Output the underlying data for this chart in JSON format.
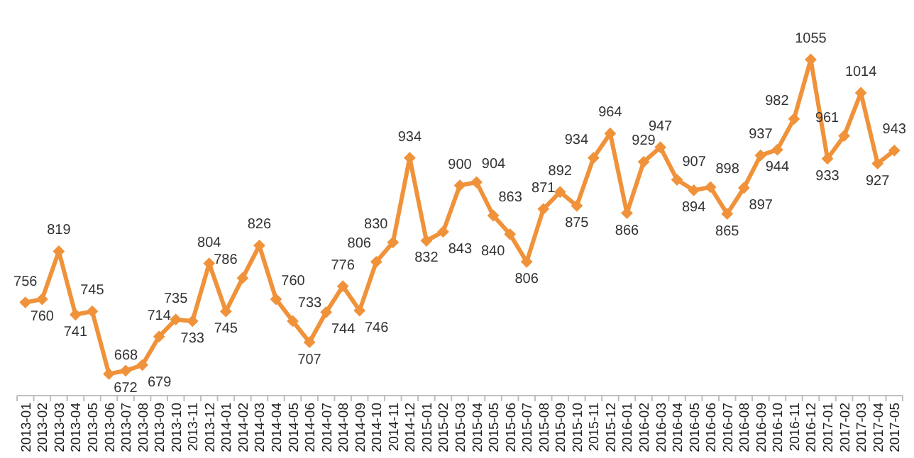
{
  "chart_data": {
    "type": "line",
    "categories": [
      "2013-01",
      "2013-02",
      "2013-03",
      "2013-04",
      "2013-05",
      "2013-06",
      "2013-07",
      "2013-08",
      "2013-09",
      "2013-10",
      "2013-11",
      "2013-12",
      "2014-01",
      "2014-02",
      "2014-03",
      "2014-04",
      "2014-05",
      "2014-06",
      "2014-07",
      "2014-08",
      "2014-09",
      "2014-10",
      "2014-11",
      "2014-12",
      "2015-01",
      "2015-02",
      "2015-03",
      "2015-04",
      "2015-05",
      "2015-06",
      "2015-07",
      "2015-08",
      "2015-09",
      "2015-10",
      "2015-11",
      "2015-12",
      "2016-01",
      "2016-02",
      "2016-03",
      "2016-04",
      "2016-05",
      "2016-06",
      "2016-07",
      "2016-08",
      "2016-09",
      "2016-10",
      "2016-11",
      "2016-12",
      "2017-01",
      "2017-02",
      "2017-03",
      "2017-04",
      "2017-05"
    ],
    "values": [
      756,
      760,
      819,
      741,
      745,
      668,
      672,
      679,
      714,
      735,
      733,
      804,
      745,
      786,
      826,
      760,
      733,
      707,
      744,
      776,
      746,
      806,
      830,
      934,
      832,
      843,
      900,
      904,
      863,
      840,
      806,
      871,
      892,
      875,
      934,
      964,
      866,
      929,
      947,
      907,
      894,
      898,
      865,
      897,
      937,
      944,
      982,
      1055,
      933,
      961,
      1014,
      927,
      943
    ],
    "color": "#f0923a",
    "marker": "diamond",
    "line_style": "solid",
    "data_labels": true
  }
}
